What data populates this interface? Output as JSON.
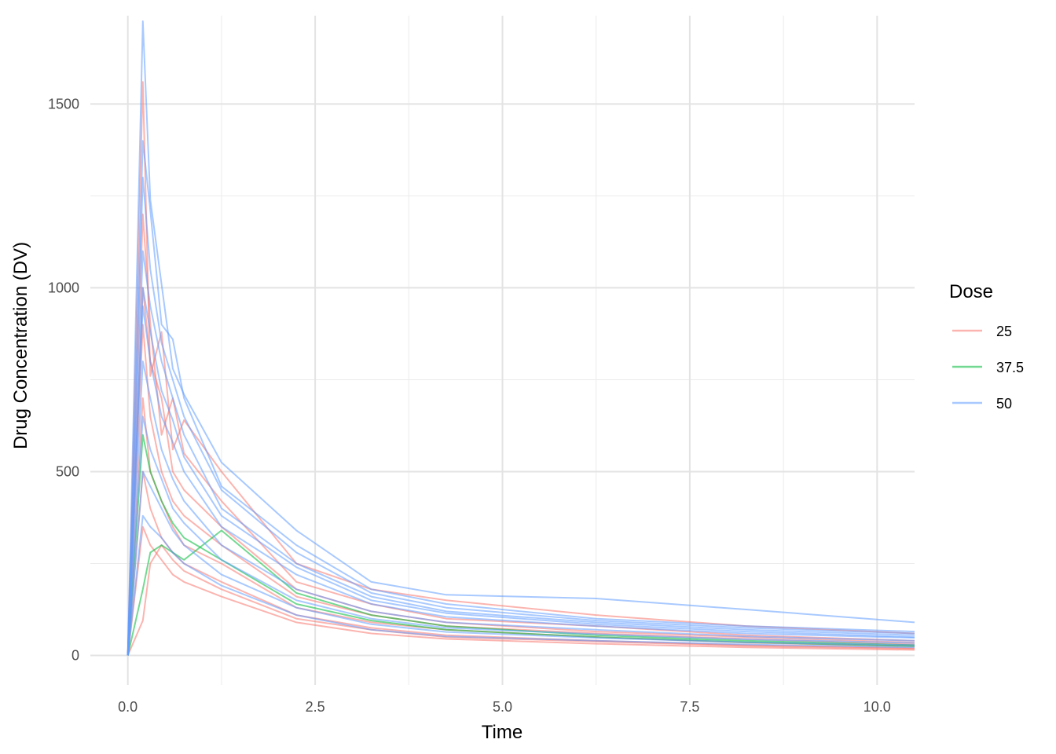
{
  "chart_data": {
    "type": "line",
    "title": "",
    "xlabel": "Time",
    "ylabel": "Drug Concentration (DV)",
    "xlim": [
      -0.5,
      10.5
    ],
    "ylim": [
      -80,
      1740
    ],
    "x_ticks": [
      0,
      2.5,
      5,
      7.5,
      10
    ],
    "x_tick_labels": [
      "0.0",
      "2.5",
      "5.0",
      "7.5",
      "10.0"
    ],
    "y_ticks": [
      0,
      500,
      1000,
      1500
    ],
    "y_tick_labels": [
      "0",
      "500",
      "1000",
      "1500"
    ],
    "grid": true,
    "legend": {
      "title": "Dose",
      "placement": "right",
      "entries": [
        {
          "label": "25",
          "color": "#F8766D"
        },
        {
          "label": "37.5",
          "color": "#00BA38"
        },
        {
          "label": "50",
          "color": "#619CFF"
        }
      ]
    },
    "series": [
      {
        "dose": "25",
        "color": "#F8766D",
        "x": [
          0,
          0.2,
          0.3,
          0.45,
          0.6,
          0.75,
          1.25,
          2.25,
          3.25,
          4.25,
          6.25,
          8.25,
          10.5
        ],
        "y": [
          0,
          1560,
          760,
          880,
          560,
          640,
          500,
          250,
          180,
          150,
          110,
          80,
          60
        ]
      },
      {
        "dose": "25",
        "color": "#F8766D",
        "x": [
          0,
          0.2,
          0.3,
          0.45,
          0.6,
          0.75,
          1.25,
          2.25,
          3.25,
          4.25,
          6.25,
          8.25,
          10.5
        ],
        "y": [
          0,
          1200,
          900,
          600,
          700,
          550,
          420,
          200,
          140,
          100,
          80,
          55,
          40
        ]
      },
      {
        "dose": "25",
        "color": "#F8766D",
        "x": [
          0,
          0.2,
          0.3,
          0.45,
          0.6,
          0.75,
          1.25,
          2.25,
          3.25,
          4.25,
          6.25,
          8.25,
          10.5
        ],
        "y": [
          0,
          900,
          650,
          500,
          420,
          380,
          300,
          160,
          110,
          80,
          60,
          45,
          30
        ]
      },
      {
        "dose": "25",
        "color": "#F8766D",
        "x": [
          0,
          0.2,
          0.3,
          0.45,
          0.6,
          0.75,
          1.25,
          2.25,
          3.25,
          4.25,
          6.25,
          8.25,
          10.5
        ],
        "y": [
          0,
          700,
          500,
          420,
          350,
          300,
          250,
          130,
          90,
          70,
          50,
          35,
          25
        ]
      },
      {
        "dose": "25",
        "color": "#F8766D",
        "x": [
          0,
          0.2,
          0.3,
          0.45,
          0.6,
          0.75,
          1.25,
          2.25,
          3.25,
          4.25,
          6.25,
          8.25,
          10.5
        ],
        "y": [
          0,
          500,
          400,
          320,
          280,
          250,
          200,
          110,
          75,
          55,
          40,
          28,
          20
        ]
      },
      {
        "dose": "25",
        "color": "#F8766D",
        "x": [
          0,
          0.2,
          0.3,
          0.45,
          0.6,
          0.75,
          1.25,
          2.25,
          3.25,
          4.25,
          6.25,
          8.25,
          10.5
        ],
        "y": [
          0,
          350,
          300,
          260,
          220,
          200,
          160,
          90,
          60,
          45,
          32,
          22,
          15
        ]
      },
      {
        "dose": "25",
        "color": "#F8766D",
        "x": [
          0,
          0.2,
          0.3,
          0.45,
          0.6,
          0.75,
          1.25,
          2.25,
          3.25,
          4.25,
          6.25,
          8.25,
          10.5
        ],
        "y": [
          0,
          1000,
          800,
          700,
          500,
          450,
          350,
          180,
          120,
          90,
          65,
          50,
          35
        ]
      },
      {
        "dose": "25",
        "color": "#F8766D",
        "x": [
          0,
          0.2,
          0.3,
          0.45,
          0.6,
          0.75,
          1.25,
          2.25,
          3.25,
          4.25,
          6.25,
          8.25,
          10.5
        ],
        "y": [
          0,
          95,
          250,
          300,
          260,
          230,
          180,
          100,
          70,
          50,
          38,
          26,
          18
        ]
      },
      {
        "dose": "37.5",
        "color": "#00BA38",
        "x": [
          0,
          0.2,
          0.3,
          0.45,
          0.6,
          0.75,
          1.25,
          2.25,
          3.25,
          4.25,
          6.25,
          8.25,
          10.5
        ],
        "y": [
          0,
          180,
          280,
          300,
          280,
          260,
          340,
          170,
          110,
          80,
          55,
          40,
          28
        ]
      },
      {
        "dose": "37.5",
        "color": "#00BA38",
        "x": [
          0,
          0.2,
          0.3,
          0.45,
          0.6,
          0.75,
          1.25,
          2.25,
          3.25,
          4.25,
          6.25,
          8.25,
          10.5
        ],
        "y": [
          0,
          600,
          500,
          420,
          360,
          320,
          260,
          140,
          95,
          70,
          50,
          36,
          25
        ]
      },
      {
        "dose": "50",
        "color": "#619CFF",
        "x": [
          0,
          0.2,
          0.3,
          0.45,
          0.6,
          0.75,
          1.25,
          2.25,
          3.25,
          4.25,
          6.25,
          8.25,
          10.5
        ],
        "y": [
          0,
          1725,
          1240,
          1010,
          780,
          710,
          525,
          340,
          200,
          165,
          155,
          125,
          90
        ]
      },
      {
        "dose": "50",
        "color": "#619CFF",
        "x": [
          0,
          0.2,
          0.3,
          0.45,
          0.6,
          0.75,
          1.25,
          2.25,
          3.25,
          4.25,
          6.25,
          8.25,
          10.5
        ],
        "y": [
          0,
          1400,
          1210,
          900,
          860,
          700,
          460,
          300,
          180,
          140,
          100,
          80,
          65
        ]
      },
      {
        "dose": "50",
        "color": "#619CFF",
        "x": [
          0,
          0.2,
          0.3,
          0.45,
          0.6,
          0.75,
          1.25,
          2.25,
          3.25,
          4.25,
          6.25,
          8.25,
          10.5
        ],
        "y": [
          0,
          1100,
          950,
          800,
          700,
          600,
          400,
          250,
          160,
          120,
          90,
          70,
          55
        ]
      },
      {
        "dose": "50",
        "color": "#619CFF",
        "x": [
          0,
          0.2,
          0.3,
          0.45,
          0.6,
          0.75,
          1.25,
          2.25,
          3.25,
          4.25,
          6.25,
          8.25,
          10.5
        ],
        "y": [
          0,
          950,
          800,
          650,
          580,
          500,
          350,
          220,
          140,
          105,
          80,
          60,
          48
        ]
      },
      {
        "dose": "50",
        "color": "#619CFF",
        "x": [
          0,
          0.2,
          0.3,
          0.45,
          0.6,
          0.75,
          1.25,
          2.25,
          3.25,
          4.25,
          6.25,
          8.25,
          10.5
        ],
        "y": [
          0,
          800,
          700,
          560,
          480,
          420,
          300,
          180,
          120,
          90,
          70,
          52,
          40
        ]
      },
      {
        "dose": "50",
        "color": "#619CFF",
        "x": [
          0,
          0.2,
          0.3,
          0.45,
          0.6,
          0.75,
          1.25,
          2.25,
          3.25,
          4.25,
          6.25,
          8.25,
          10.5
        ],
        "y": [
          0,
          650,
          560,
          480,
          400,
          360,
          260,
          150,
          100,
          75,
          58,
          44,
          34
        ]
      },
      {
        "dose": "50",
        "color": "#619CFF",
        "x": [
          0,
          0.2,
          0.3,
          0.45,
          0.6,
          0.75,
          1.25,
          2.25,
          3.25,
          4.25,
          6.25,
          8.25,
          10.5
        ],
        "y": [
          0,
          500,
          460,
          400,
          340,
          300,
          220,
          130,
          85,
          64,
          48,
          36,
          28
        ]
      },
      {
        "dose": "50",
        "color": "#619CFF",
        "x": [
          0,
          0.2,
          0.3,
          0.45,
          0.6,
          0.75,
          1.25,
          2.25,
          3.25,
          4.25,
          6.25,
          8.25,
          10.5
        ],
        "y": [
          0,
          380,
          350,
          320,
          280,
          250,
          190,
          110,
          70,
          52,
          40,
          30,
          22
        ]
      },
      {
        "dose": "50",
        "color": "#619CFF",
        "x": [
          0,
          0.2,
          0.3,
          0.45,
          0.6,
          0.75,
          1.25,
          2.25,
          3.25,
          4.25,
          6.25,
          8.25,
          10.5
        ],
        "y": [
          0,
          1300,
          1050,
          850,
          750,
          650,
          450,
          280,
          170,
          130,
          95,
          75,
          60
        ]
      },
      {
        "dose": "50",
        "color": "#619CFF",
        "x": [
          0,
          0.2,
          0.3,
          0.45,
          0.6,
          0.75,
          1.25,
          2.25,
          3.25,
          4.25,
          6.25,
          8.25,
          10.5
        ],
        "y": [
          0,
          1000,
          880,
          720,
          640,
          540,
          380,
          240,
          150,
          115,
          85,
          65,
          50
        ]
      }
    ]
  }
}
